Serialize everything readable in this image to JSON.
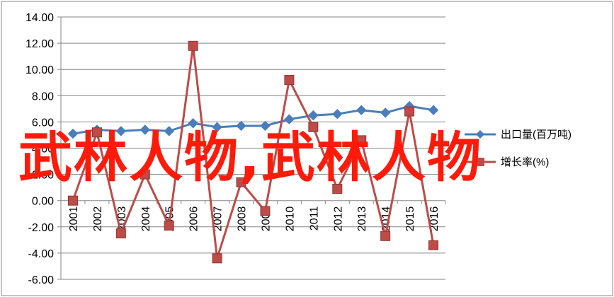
{
  "chart_data": {
    "type": "line",
    "categories": [
      "2001",
      "2002",
      "2003",
      "2004",
      "2005",
      "2006",
      "2007",
      "2008",
      "2009",
      "2010",
      "2011",
      "2012",
      "2013",
      "2014",
      "2015",
      "2016"
    ],
    "y_ticks": [
      "14.00",
      "12.00",
      "10.00",
      "8.00",
      "6.00",
      "4.00",
      "2.00",
      "0.00",
      "-2.00",
      "-4.00",
      "-6.00"
    ],
    "ylim": [
      -6,
      14
    ],
    "grid": true,
    "legend_position": "right",
    "series": [
      {
        "name": "出口量(百万吨)",
        "color": "#4a7ebb",
        "marker": "diamond",
        "values": [
          5.1,
          5.4,
          5.3,
          5.4,
          5.3,
          5.9,
          5.6,
          5.7,
          5.7,
          6.2,
          6.5,
          6.6,
          6.9,
          6.7,
          7.2,
          6.9
        ]
      },
      {
        "name": "增长率(%)",
        "color": "#be4b48",
        "marker": "square",
        "values": [
          0.0,
          5.2,
          -2.5,
          2.0,
          -1.9,
          11.8,
          -4.4,
          1.4,
          -0.8,
          9.2,
          5.6,
          0.9,
          4.6,
          -2.7,
          6.8,
          -3.4
        ]
      }
    ]
  },
  "overlay_text": "武林人物,武林人物"
}
